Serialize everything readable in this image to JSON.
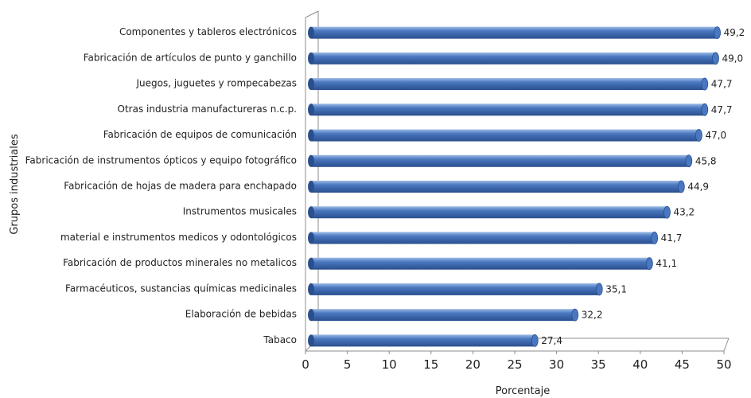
{
  "chart_data": {
    "type": "bar",
    "orientation": "horizontal",
    "style": "3d-cylinder",
    "categories": [
      "Componentes y tableros electrónicos",
      "Fabricación de artículos de punto y ganchillo",
      "Juegos, juguetes y rompecabezas",
      "Otras industria manufactureras n.c.p.",
      "Fabricación de equipos de comunicación",
      "Fabricación de instrumentos ópticos y equipo fotográfico",
      "Fabricación de hojas de madera para enchapado",
      "Instrumentos musicales",
      "material e instrumentos medicos y odontológicos",
      "Fabricación de productos minerales no metalicos",
      "Farmacéuticos, sustancias químicas medicinales",
      "Elaboración de bebidas",
      "Tabaco"
    ],
    "values": [
      49.2,
      49.0,
      47.7,
      47.7,
      47.0,
      45.8,
      44.9,
      43.2,
      41.7,
      41.1,
      35.1,
      32.2,
      27.4
    ],
    "value_labels": [
      "49,2",
      "49,0",
      "47,7",
      "47,7",
      "47,0",
      "45,8",
      "44,9",
      "43,2",
      "41,7",
      "41,1",
      "35,1",
      "32,2",
      "27,4"
    ],
    "xticks": [
      "0",
      "5",
      "10",
      "15",
      "20",
      "25",
      "30",
      "35",
      "40",
      "45",
      "50"
    ],
    "xlim": [
      0,
      50
    ],
    "xlabel": "Porcentaje",
    "ylabel": "Grupos industriales",
    "title": "",
    "grid": false,
    "legend": "none",
    "bar_color": "#4a78c0",
    "bar_color_dark": "#2a4f8e",
    "bar_color_light": "#9dbbe6"
  }
}
